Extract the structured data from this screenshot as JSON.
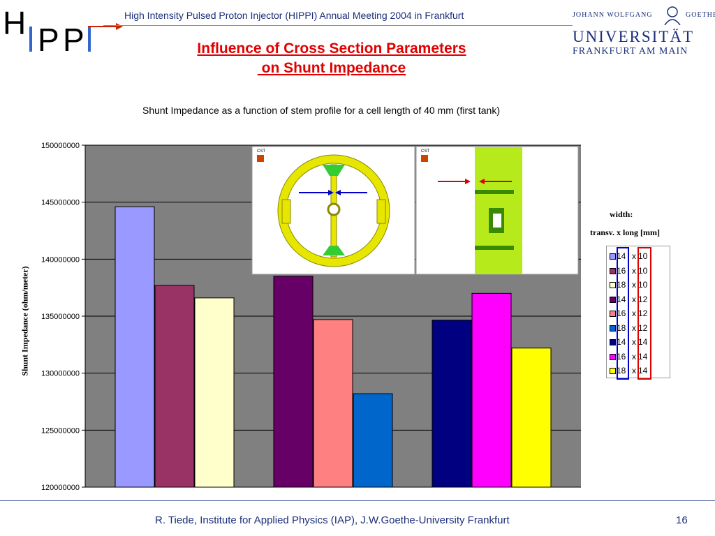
{
  "header": {
    "logo_text": "HIPPI",
    "conference": "High Intensity Pulsed Proton Injector (HIPPI) Annual Meeting 2004 in Frankfurt",
    "university_top_left": "JOHANN WOLFGANG",
    "university_top_right": "GOETHE",
    "university_name": "UNIVERSITÄT",
    "university_city": "FRANKFURT AM MAIN"
  },
  "slide_title_line1": "Influence of Cross Section Parameters",
  "slide_title_line2": " on Shunt Impedance",
  "legend_header1": "width:",
  "legend_header2": "transv. x long [mm]",
  "insets": {
    "left_badge": "CST",
    "right_badge": "CST"
  },
  "chart_data": {
    "type": "bar",
    "title": "Shunt Impedance as a function of stem profile for a cell length of 40 mm (first tank)",
    "xlabel": "",
    "ylabel": "Shunt Impedance (ohm/meter)",
    "ylim": [
      120000000,
      150000000
    ],
    "yticks": [
      "150000000",
      "145000000",
      "140000000",
      "135000000",
      "130000000",
      "125000000",
      "120000000"
    ],
    "grid": true,
    "legend_position": "right",
    "background_color": "#808080",
    "series": [
      {
        "transv": "14",
        "x": "x",
        "long": "10",
        "value": 144600000,
        "color": "#9999ff"
      },
      {
        "transv": "16",
        "x": "x",
        "long": "10",
        "value": 137700000,
        "color": "#993366"
      },
      {
        "transv": "18",
        "x": "x",
        "long": "10",
        "value": 136600000,
        "color": "#ffffcc"
      },
      {
        "transv": "14",
        "x": "x",
        "long": "12",
        "value": 138500000,
        "color": "#660066"
      },
      {
        "transv": "16",
        "x": "x",
        "long": "12",
        "value": 134700000,
        "color": "#ff8080"
      },
      {
        "transv": "18",
        "x": "x",
        "long": "12",
        "value": 128200000,
        "color": "#0066cc"
      },
      {
        "transv": "14",
        "x": "x",
        "long": "14",
        "value": 134650000,
        "color": "#000080"
      },
      {
        "transv": "16",
        "x": "x",
        "long": "14",
        "value": 137000000,
        "color": "#ff00ff"
      },
      {
        "transv": "18",
        "x": "x",
        "long": "14",
        "value": 132200000,
        "color": "#ffff00"
      }
    ]
  },
  "colors": {
    "title_red": "#e00000",
    "navy": "#1a2e7a",
    "inset_yellow": "#e6e600",
    "marker_blue": "#0000cc",
    "marker_red": "#dd0000"
  },
  "footer": {
    "text": "R. Tiede, Institute for Applied Physics (IAP), J.W.Goethe-University Frankfurt",
    "page": "16"
  }
}
